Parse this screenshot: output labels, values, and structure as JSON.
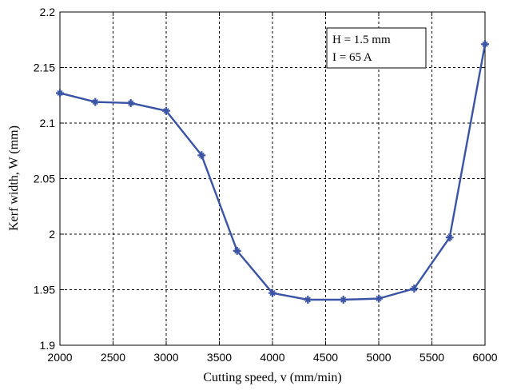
{
  "chart_data": {
    "type": "line",
    "xlabel": "Cutting speed, v (mm/min)",
    "ylabel": "Kerf width, W (mm)",
    "xlim": [
      2000,
      6000
    ],
    "ylim": [
      1.9,
      2.2
    ],
    "xticks": [
      2000,
      2500,
      3000,
      3500,
      4000,
      4500,
      5000,
      5500,
      6000
    ],
    "yticks": [
      1.9,
      1.95,
      2,
      2.05,
      2.1,
      2.15,
      2.2
    ],
    "xtick_labels": [
      "2000",
      "2500",
      "3000",
      "3500",
      "4000",
      "4500",
      "5000",
      "5500",
      "6000"
    ],
    "ytick_labels": [
      "1.9",
      "1.95",
      "2",
      "2.05",
      "2.1",
      "2.15",
      "2.2"
    ],
    "grid": true,
    "series": [
      {
        "color": "#3a53a4",
        "marker": "star",
        "x": [
          2000,
          2333,
          2667,
          3000,
          3333,
          3667,
          4000,
          4333,
          4667,
          5000,
          5333,
          5667,
          6000
        ],
        "y": [
          2.127,
          2.119,
          2.118,
          2.111,
          2.071,
          1.985,
          1.947,
          1.941,
          1.941,
          1.942,
          1.951,
          1.997,
          2.171
        ]
      }
    ],
    "annotation": {
      "lines": [
        "H = 1.5 mm",
        "I = 65 A"
      ],
      "position": "top-right"
    }
  }
}
